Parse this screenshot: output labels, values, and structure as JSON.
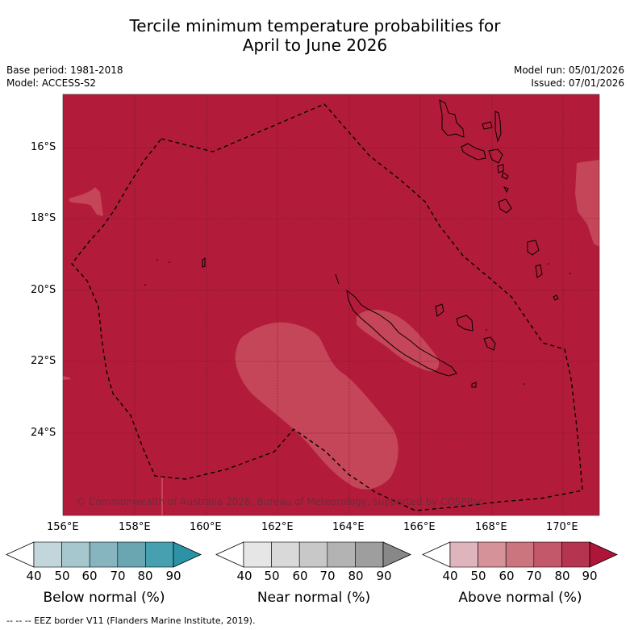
{
  "title": {
    "line1": "Tercile minimum temperature probabilities for",
    "line2": "April to June 2026"
  },
  "header": {
    "base_period": "Base period: 1981-2018",
    "model": "Model: ACCESS-S2",
    "model_run": "Model run: 05/01/2026",
    "issued": "Issued: 07/01/2026"
  },
  "map": {
    "copyright": "© Commonwealth of Australia 2026, Bureau of Meteorology, supported by COSPPac",
    "colors": {
      "above90": "#b21c3a",
      "above80": "#c54658",
      "border": "#000000"
    },
    "lat_ticks": [
      "16°S",
      "18°S",
      "20°S",
      "22°S",
      "24°S"
    ],
    "lon_ticks": [
      "156°E",
      "158°E",
      "160°E",
      "162°E",
      "164°E",
      "166°E",
      "168°E",
      "170°E"
    ]
  },
  "colorbars": [
    {
      "label": "Below normal (%)",
      "ticks": [
        "40",
        "50",
        "60",
        "70",
        "80",
        "90"
      ],
      "colors": [
        "#ffffff",
        "#c2d6dc",
        "#a6c7cd",
        "#87b5bf",
        "#69a6b2",
        "#47a0b0",
        "#2b93a5"
      ]
    },
    {
      "label": "Near normal (%)",
      "ticks": [
        "40",
        "50",
        "60",
        "70",
        "80",
        "90"
      ],
      "colors": [
        "#ffffff",
        "#e6e6e6",
        "#d9d9d9",
        "#c8c8c8",
        "#b3b3b3",
        "#9e9e9e",
        "#888888"
      ]
    },
    {
      "label": "Above normal (%)",
      "ticks": [
        "40",
        "50",
        "60",
        "70",
        "80",
        "90"
      ],
      "colors": [
        "#ffffff",
        "#dfb5bd",
        "#d69299",
        "#cb757e",
        "#c2586a",
        "#b53450",
        "#ad1539"
      ]
    }
  ],
  "footer": "-- -- -- EEZ border V11 (Flanders Marine Institute, 2019)."
}
